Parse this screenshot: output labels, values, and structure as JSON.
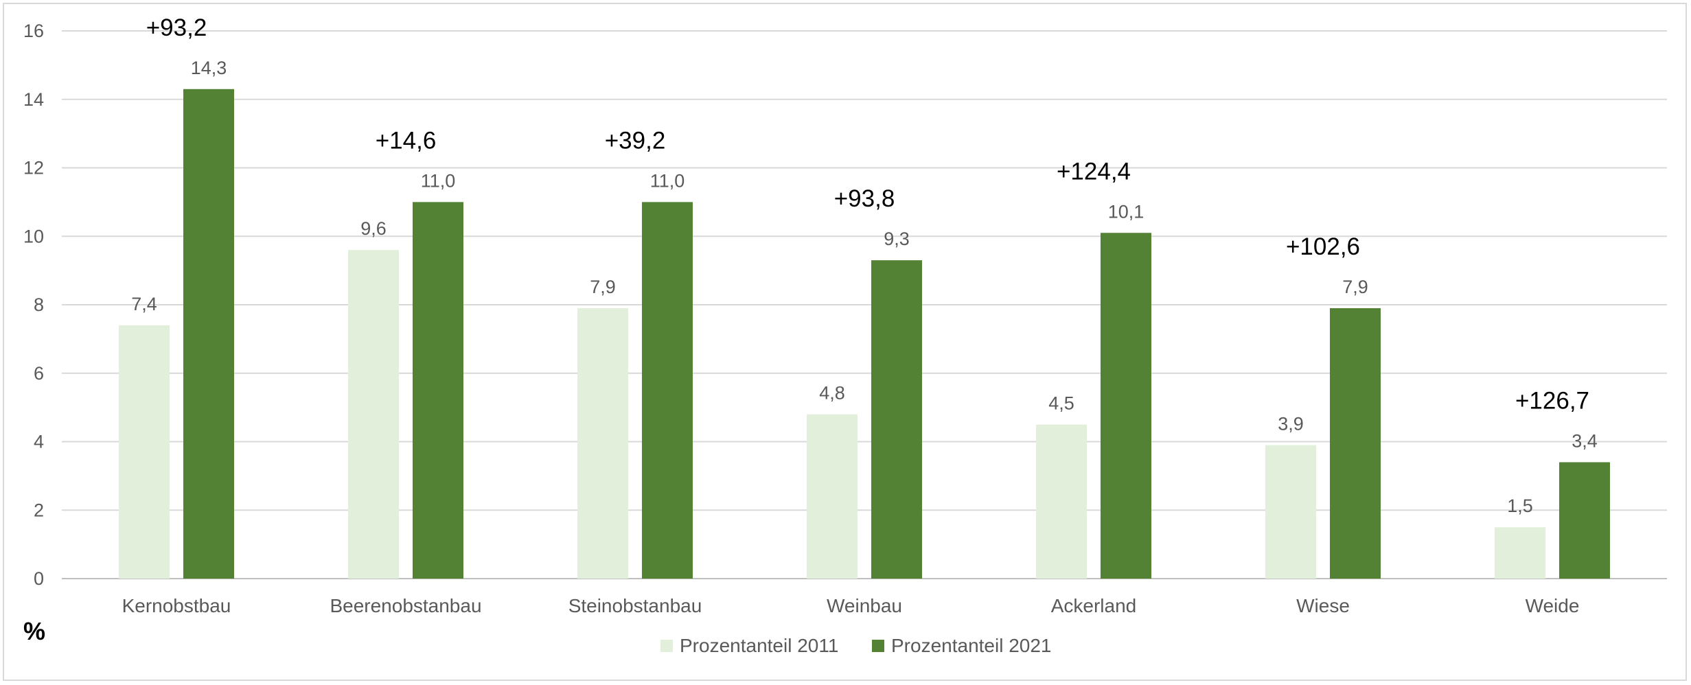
{
  "chart_data": {
    "type": "bar",
    "categories": [
      "Kernobstbau",
      "Beerenobstanbau",
      "Steinobstanbau",
      "Weinbau",
      "Ackerland",
      "Wiese",
      "Weide"
    ],
    "series": [
      {
        "name": "Prozentanteil 2011",
        "color": "#e2efda",
        "values": [
          7.4,
          9.6,
          7.9,
          4.8,
          4.5,
          3.9,
          1.5
        ],
        "labels": [
          "7,4",
          "9,6",
          "7,9",
          "4,8",
          "4,5",
          "3,9",
          "1,5"
        ]
      },
      {
        "name": "Prozentanteil 2021",
        "color": "#548235",
        "values": [
          14.3,
          11.0,
          11.0,
          9.3,
          10.1,
          7.9,
          3.4
        ],
        "labels": [
          "14,3",
          "11,0",
          "11,0",
          "9,3",
          "10,1",
          "7,9",
          "3,4"
        ]
      }
    ],
    "change_labels": [
      "+93,2",
      "+14,6",
      "+39,2",
      "+93,8",
      "+124,4",
      "+102,6",
      "+126,7"
    ],
    "ylabel": "%",
    "ylim": [
      0,
      16
    ],
    "yticks": [
      0,
      2,
      4,
      6,
      8,
      10,
      12,
      14,
      16
    ],
    "grid": true,
    "legend": "bottom-center"
  }
}
